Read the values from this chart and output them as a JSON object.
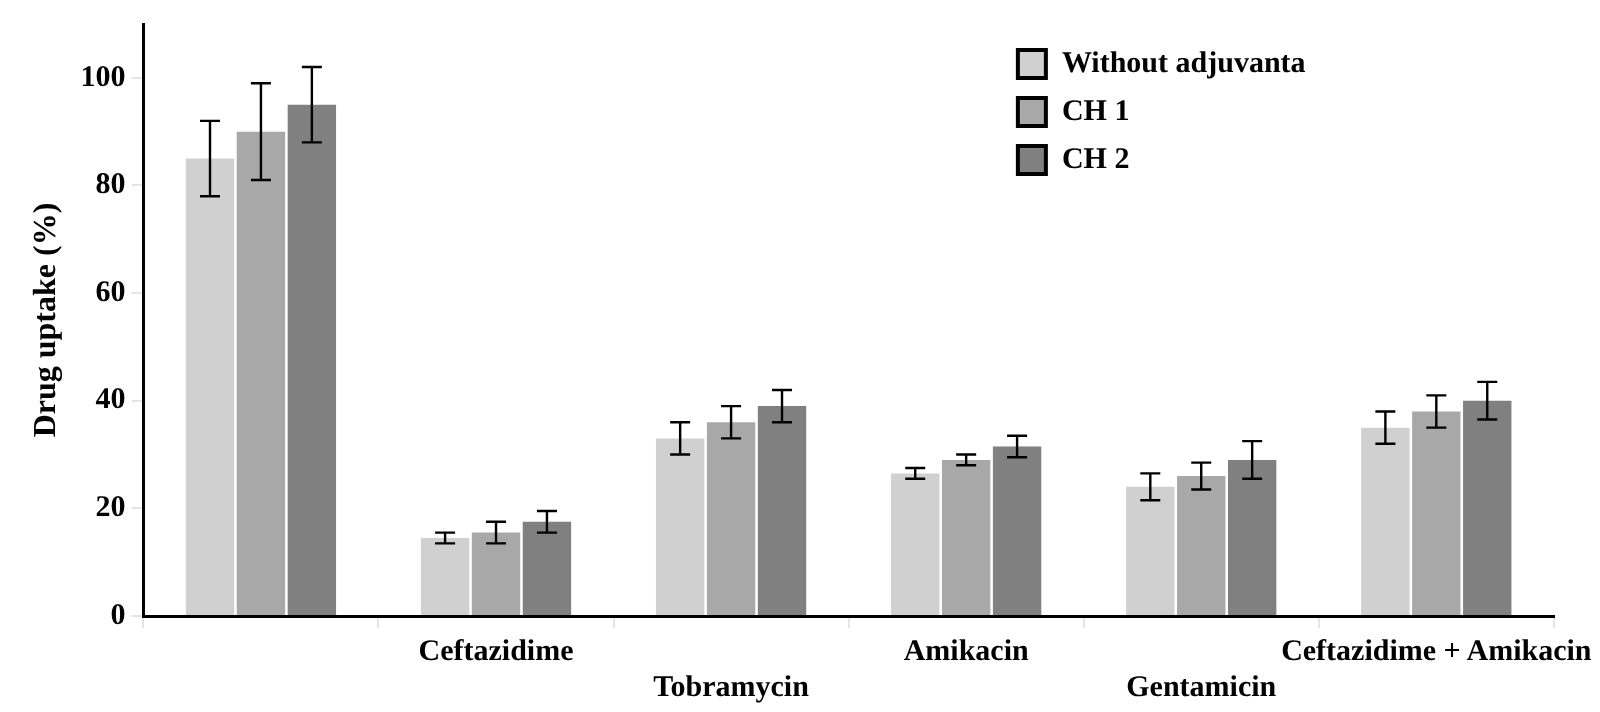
{
  "chart_data": {
    "type": "bar",
    "ylabel": "Drug uptake (%)",
    "categories": [
      null,
      "Ceftazidime",
      "Tobramycin",
      "Amikacin",
      "Gentamicin",
      "Ceftazidime + Amikacin"
    ],
    "series": [
      {
        "name": "Without adjuvanta",
        "color": "#d0d0d0",
        "values": [
          85,
          14.5,
          33,
          26.5,
          24,
          35
        ],
        "errors": [
          7,
          1,
          3,
          1,
          2.5,
          3
        ]
      },
      {
        "name": "CH 1",
        "color": "#a8a8a8",
        "values": [
          90,
          15.5,
          36,
          29,
          26,
          38
        ],
        "errors": [
          9,
          2,
          3,
          1,
          2.5,
          3
        ]
      },
      {
        "name": "CH 2",
        "color": "#808080",
        "values": [
          95,
          17.5,
          39,
          31.5,
          29,
          40
        ],
        "errors": [
          7,
          2,
          3,
          2,
          3.5,
          3.5
        ]
      }
    ],
    "ylim": [
      0,
      110
    ],
    "yticks": [
      0,
      20,
      40,
      60,
      80,
      100
    ],
    "grid": false,
    "legend": "top right"
  }
}
